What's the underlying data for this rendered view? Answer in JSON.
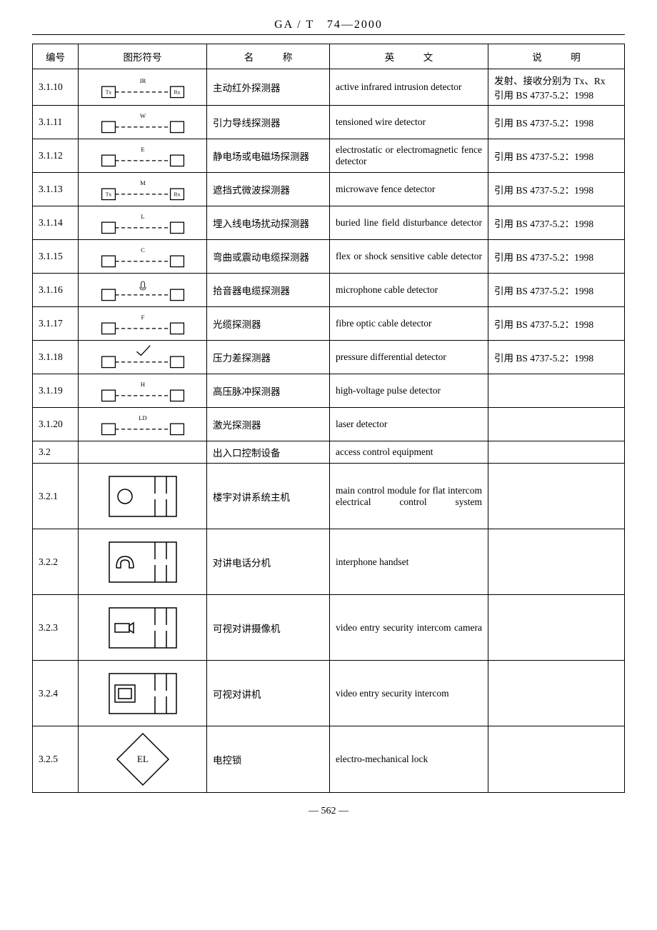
{
  "standard_code": "GA / T　74—2000",
  "page_number": "— 562 —",
  "headers": {
    "id": "编号",
    "symbol": "图形符号",
    "name_l": "名",
    "name_r": "称",
    "english_l": "英",
    "english_r": "文",
    "note_l": "说",
    "note_r": "明"
  },
  "rows": [
    {
      "id": "3.1.10",
      "name": "主动红外探测器",
      "english": "active infrared intrusion detector",
      "note": "发射、接收分别为 Tx、Rx　引用 BS 4737-5.2：1998",
      "symbol": {
        "type": "fence",
        "label": "IR",
        "tx": "Tx",
        "rx": "Rx"
      }
    },
    {
      "id": "3.1.11",
      "name": "引力导线探测器",
      "english": "tensioned wire detector",
      "note": "引用 BS 4737-5.2：1998",
      "symbol": {
        "type": "fence",
        "label": "W"
      }
    },
    {
      "id": "3.1.12",
      "name": "静电场或电磁场探测器",
      "english": "electrostatic or electromagnetic fence detector",
      "note": "引用 BS 4737-5.2：1998",
      "symbol": {
        "type": "fence",
        "label": "E"
      }
    },
    {
      "id": "3.1.13",
      "name": "遮挡式微波探测器",
      "english": "microwave fence detector",
      "note": "引用 BS 4737-5.2：1998",
      "symbol": {
        "type": "fence",
        "label": "M",
        "tx": "Tx",
        "rx": "Rx"
      }
    },
    {
      "id": "3.1.14",
      "name": "埋入线电场扰动探测器",
      "english": "buried line field disturbance detector",
      "note": "引用 BS 4737-5.2：1998",
      "symbol": {
        "type": "fence",
        "label": "L"
      }
    },
    {
      "id": "3.1.15",
      "name": "弯曲或震动电缆探测器",
      "english": "flex or shock sensitive cable detector",
      "note": "引用 BS 4737-5.2：1998",
      "symbol": {
        "type": "fence",
        "label": "C"
      }
    },
    {
      "id": "3.1.16",
      "name": "拾音器电缆探测器",
      "english": "microphone cable detector",
      "note": "引用 BS 4737-5.2：1998",
      "symbol": {
        "type": "fence",
        "label": "mic"
      }
    },
    {
      "id": "3.1.17",
      "name": "光缆探测器",
      "english": "fibre optic cable detector",
      "note": "引用 BS 4737-5.2：1998",
      "symbol": {
        "type": "fence",
        "label": "F"
      }
    },
    {
      "id": "3.1.18",
      "name": "压力差探测器",
      "english": "pressure differential detector",
      "note": "引用 BS 4737-5.2：1998",
      "symbol": {
        "type": "fence",
        "label": "check"
      }
    },
    {
      "id": "3.1.19",
      "name": "高压脉冲探测器",
      "english": "high-voltage pulse detector",
      "note": "",
      "symbol": {
        "type": "fence",
        "label": "H"
      }
    },
    {
      "id": "3.1.20",
      "name": "激光探测器",
      "english": "laser detector",
      "note": "",
      "symbol": {
        "type": "fence",
        "label": "LD"
      }
    },
    {
      "id": "3.2",
      "name": "出入口控制设备",
      "english": "access control equipment",
      "note": "",
      "symbol": {
        "type": "none"
      },
      "short": true
    },
    {
      "id": "3.2.1",
      "name": "楼宇对讲系统主机",
      "english": "main control module for flat intercom electrical control system",
      "note": "",
      "symbol": {
        "type": "intercom",
        "inner": "circle"
      },
      "tall": true
    },
    {
      "id": "3.2.2",
      "name": "对讲电话分机",
      "english": "interphone handset",
      "note": "",
      "symbol": {
        "type": "intercom",
        "inner": "phone"
      },
      "tall": true
    },
    {
      "id": "3.2.3",
      "name": "可视对讲摄像机",
      "english": "video entry security intercom camera",
      "note": "",
      "symbol": {
        "type": "intercom",
        "inner": "camera"
      },
      "tall": true
    },
    {
      "id": "3.2.4",
      "name": "可视对讲机",
      "english": "video entry security intercom",
      "note": "",
      "symbol": {
        "type": "intercom",
        "inner": "screen"
      },
      "tall": true
    },
    {
      "id": "3.2.5",
      "name": "电控锁",
      "english": "electro-mechanical lock",
      "note": "",
      "symbol": {
        "type": "diamond",
        "text": "EL"
      },
      "tall": true
    }
  ],
  "style": {
    "stroke_color": "#000000",
    "stroke_width": 1.5,
    "dash": "6,4",
    "font_size_label": 10,
    "font_family": "Times New Roman"
  }
}
